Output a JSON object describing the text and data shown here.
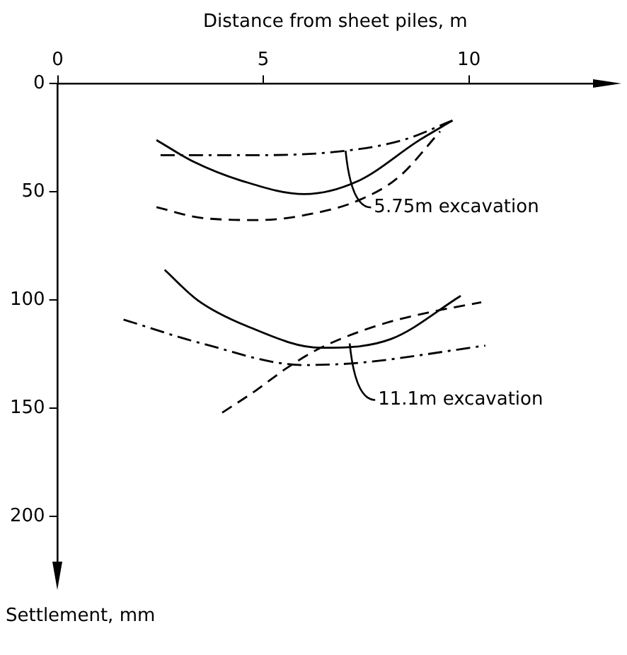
{
  "chart_data": {
    "type": "line",
    "xlabel": "Distance from sheet piles, m",
    "ylabel": "Settlement, mm",
    "xlim": [
      0,
      13.5
    ],
    "xticks": [
      0,
      5,
      10
    ],
    "ylim": [
      230,
      0
    ],
    "yticks": [
      0,
      50,
      100,
      150,
      200
    ],
    "grid": false,
    "legend": false,
    "marker": "none",
    "series": [
      {
        "color": "#000000",
        "line_style": "solid",
        "x": [
          2.4,
          3.3,
          4.5,
          6.0,
          7.3,
          8.8,
          9.6
        ],
        "values": [
          26,
          36,
          45,
          51,
          45,
          26,
          17
        ]
      },
      {
        "color": "#000000",
        "line_style": "dashed",
        "x": [
          2.4,
          3.5,
          4.9,
          6.2,
          7.3,
          8.3,
          9.3
        ],
        "values": [
          57,
          62,
          63,
          60,
          54,
          43,
          22
        ]
      },
      {
        "color": "#000000",
        "line_style": "dashdot",
        "x": [
          2.5,
          4.9,
          7.0,
          8.4,
          9.6
        ],
        "values": [
          33,
          33,
          31,
          26,
          17
        ]
      },
      {
        "color": "#000000",
        "line_style": "solid",
        "x": [
          2.6,
          3.4,
          4.6,
          6.4,
          8.1,
          9.8
        ],
        "values": [
          86,
          100,
          112,
          122,
          118,
          98
        ]
      },
      {
        "color": "#000000",
        "line_style": "dashed",
        "x": [
          4.0,
          4.8,
          5.6,
          6.4,
          7.9,
          9.2,
          10.3
        ],
        "values": [
          152,
          142,
          131,
          122,
          111,
          105,
          101
        ]
      },
      {
        "color": "#000000",
        "line_style": "dashdot",
        "x": [
          1.6,
          3.5,
          6.0,
          7.3,
          10.4
        ],
        "values": [
          109,
          120,
          130,
          129,
          121
        ]
      }
    ],
    "annotations": [
      {
        "text": "5.75m excavation",
        "x": 7.0,
        "y": 31
      },
      {
        "text": "11.1m excavation",
        "x": 7.1,
        "y": 120
      }
    ]
  }
}
